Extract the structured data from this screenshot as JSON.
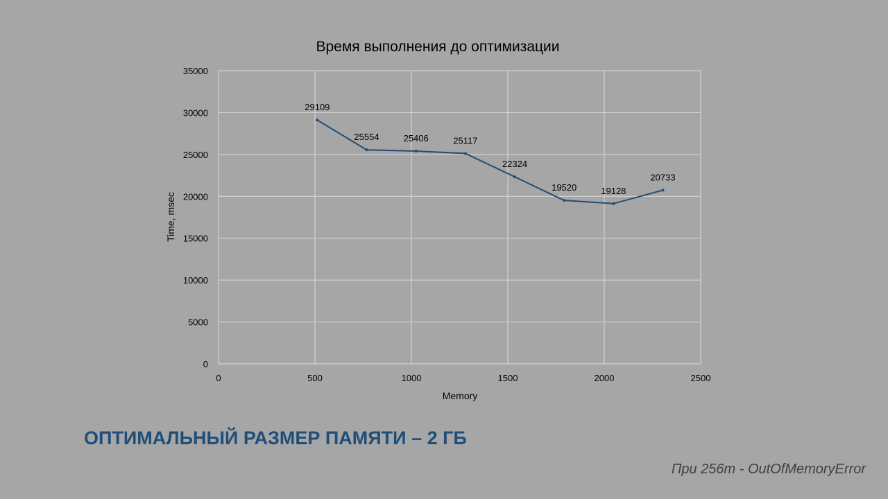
{
  "chart_data": {
    "type": "line",
    "title": "Время выполнения до оптимизации",
    "xlabel": "Memory",
    "ylabel": "Time, msec",
    "xlim": [
      0,
      2500
    ],
    "ylim": [
      0,
      35000
    ],
    "x_ticks": [
      "0",
      "500",
      "1000",
      "1500",
      "2000",
      "2500"
    ],
    "y_ticks": [
      "0",
      "5000",
      "10000",
      "15000",
      "20000",
      "25000",
      "30000",
      "35000"
    ],
    "grid": true,
    "legend": "none",
    "series": [
      {
        "color": "#1f4e79",
        "points": [
          {
            "x": 512,
            "y": 29109,
            "label": "29109"
          },
          {
            "x": 768,
            "y": 25554,
            "label": "25554"
          },
          {
            "x": 1024,
            "y": 25406,
            "label": "25406"
          },
          {
            "x": 1280,
            "y": 25117,
            "label": "25117"
          },
          {
            "x": 1536,
            "y": 22324,
            "label": "22324"
          },
          {
            "x": 1792,
            "y": 19520,
            "label": "19520"
          },
          {
            "x": 2048,
            "y": 19128,
            "label": "19128"
          },
          {
            "x": 2304,
            "y": 20733,
            "label": "20733"
          }
        ]
      }
    ]
  },
  "headline": "ОПТИМАЛЬНЫЙ РАЗМЕР ПАМЯТИ – 2 ГБ",
  "footnote": "При 256m - OutOfMemoryError"
}
